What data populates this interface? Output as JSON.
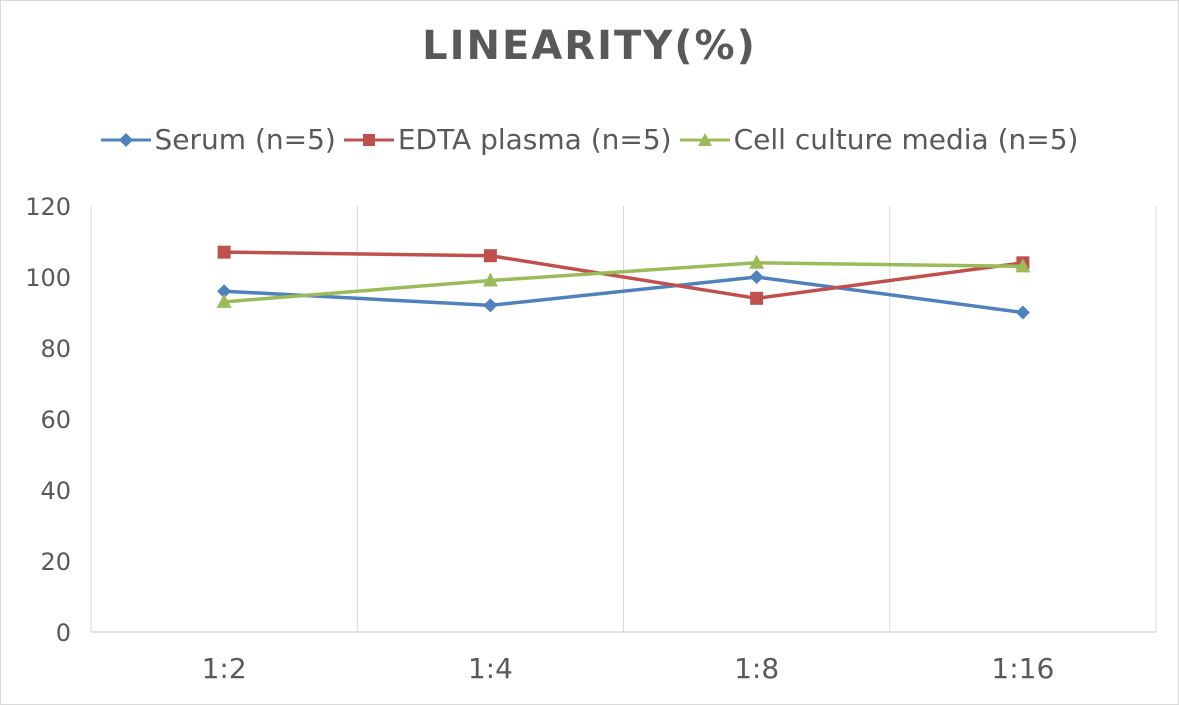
{
  "chart_data": {
    "type": "line",
    "title": "LINEARITY(%)",
    "categories": [
      "1:2",
      "1:4",
      "1:8",
      "1:16"
    ],
    "ylim": [
      0,
      120
    ],
    "yticks": [
      0,
      20,
      40,
      60,
      80,
      100,
      120
    ],
    "grid": {
      "vertical": true,
      "horizontal": false
    },
    "legend_position": "top",
    "series": [
      {
        "name": "Serum (n=5)",
        "values": [
          96,
          92,
          100,
          90
        ],
        "color": "#4f81bd",
        "marker": "diamond"
      },
      {
        "name": "EDTA plasma (n=5)",
        "values": [
          107,
          106,
          94,
          104
        ],
        "color": "#c0504d",
        "marker": "square"
      },
      {
        "name": "Cell culture media (n=5)",
        "values": [
          93,
          99,
          104,
          103
        ],
        "color": "#9bbb59",
        "marker": "triangle"
      }
    ]
  }
}
